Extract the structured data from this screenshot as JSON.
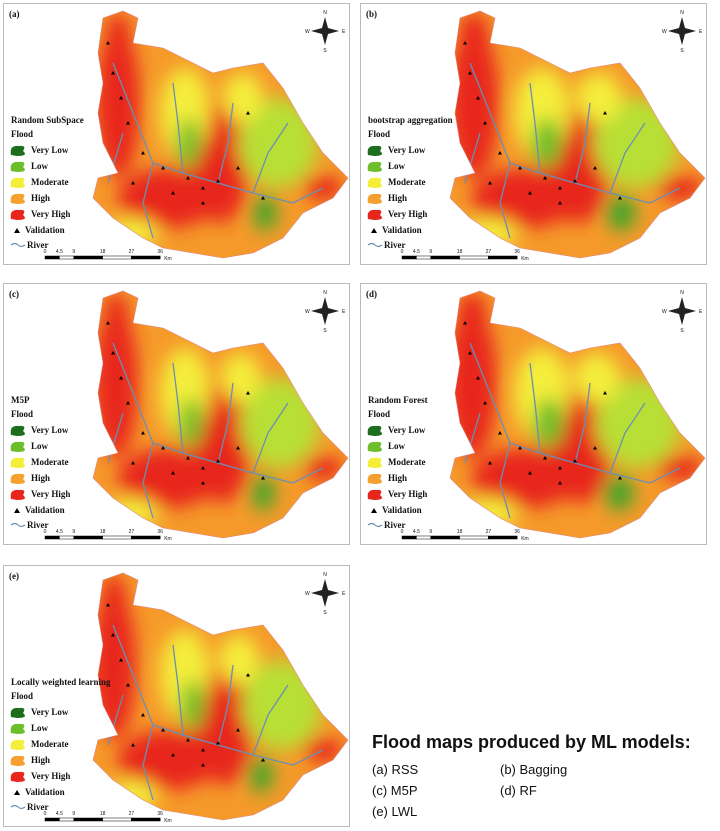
{
  "panels": [
    {
      "label": "(a)",
      "model": "Random SubSpace"
    },
    {
      "label": "(b)",
      "model": "bootstrap aggregation"
    },
    {
      "label": "(c)",
      "model": "M5P"
    },
    {
      "label": "(d)",
      "model": "Random Forest"
    },
    {
      "label": "(e)",
      "model": "Locally weighted learning"
    }
  ],
  "legend": {
    "title": "Flood",
    "items": [
      "Very Low",
      "Low",
      "Moderate",
      "High",
      "Very High"
    ],
    "validation": "Validation",
    "river": "River"
  },
  "scale": {
    "ticks": [
      0,
      4.5,
      9,
      18,
      27,
      36
    ],
    "unit": "Km"
  },
  "compass": {
    "n": "N",
    "s": "S",
    "e": "E",
    "w": "W"
  },
  "caption": {
    "title": "Flood maps produced by ML models:",
    "items": [
      "(a) RSS",
      "(b) Bagging",
      "(c) M5P",
      "(d) RF",
      "(e) LWL"
    ]
  }
}
